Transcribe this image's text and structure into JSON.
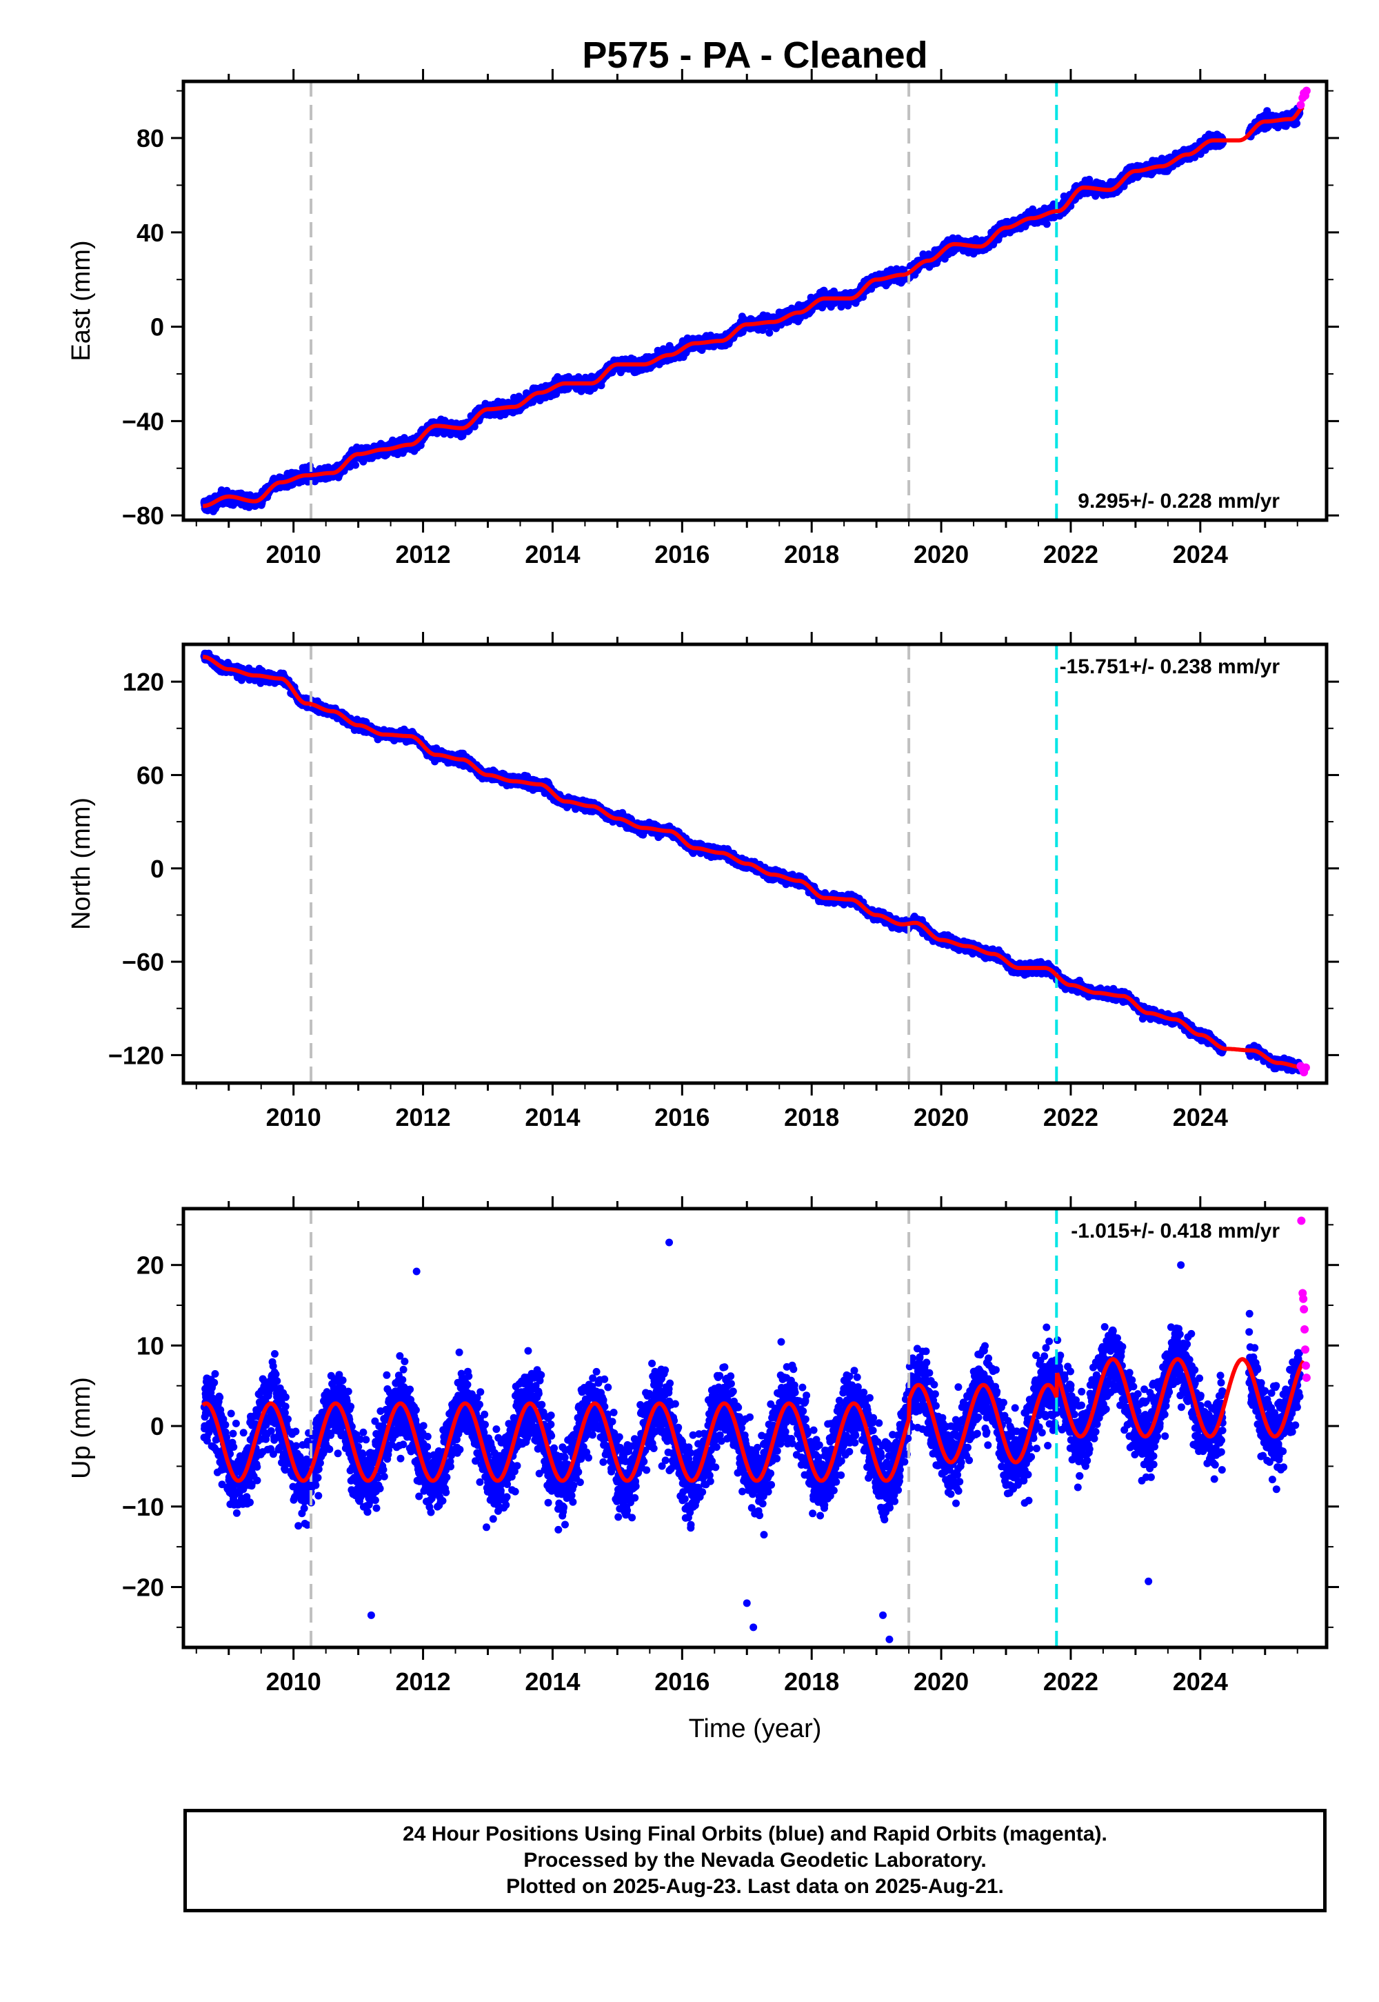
{
  "title": "P575  - PA - Cleaned",
  "colors": {
    "final": "#0000ff",
    "rapid": "#ff00ff",
    "model": "#ff0000",
    "equipment_change": "#c0c0c0",
    "earthquake": "#00e5e5"
  },
  "footer": {
    "line1": "24 Hour Positions Using Final Orbits (blue) and Rapid Orbits (magenta).",
    "line2": "Processed by the Nevada Geodetic Laboratory.",
    "line3": "Plotted on 2025-Aug-23. Last data on 2025-Aug-21."
  },
  "chart_data": [
    {
      "type": "scatter",
      "component": "east",
      "ylabel": "East (mm)",
      "xlabel": "",
      "xlim": [
        2008.3,
        2025.95
      ],
      "ylim": [
        -82,
        104
      ],
      "xticks": [
        2010,
        2012,
        2014,
        2016,
        2018,
        2020,
        2022,
        2024
      ],
      "yticks": [
        -80,
        -40,
        0,
        40,
        80
      ],
      "rate_label": "9.295+/- 0.228 mm/yr",
      "rate_position": "bottom-right",
      "vertical_lines": [
        {
          "x": 2010.27,
          "kind": "equipment_change"
        },
        {
          "x": 2019.5,
          "kind": "equipment_change"
        },
        {
          "x": 2021.78,
          "kind": "earthquake"
        }
      ],
      "model_curve": {
        "x": [
          2008.6,
          2009.0,
          2009.4,
          2009.8,
          2010.2,
          2010.6,
          2011.0,
          2011.4,
          2011.8,
          2012.2,
          2012.6,
          2013.0,
          2013.4,
          2013.8,
          2014.2,
          2014.6,
          2015.0,
          2015.4,
          2015.8,
          2016.2,
          2016.6,
          2017.0,
          2017.4,
          2017.8,
          2018.2,
          2018.6,
          2019.0,
          2019.4,
          2019.8,
          2020.2,
          2020.6,
          2021.0,
          2021.4,
          2021.8,
          2022.2,
          2022.6,
          2023.0,
          2023.4,
          2023.8,
          2024.2,
          2024.6,
          2025.0,
          2025.4,
          2025.6
        ],
        "y": [
          -76,
          -72,
          -74,
          -66,
          -63,
          -62,
          -54,
          -52,
          -50,
          -42,
          -43,
          -35,
          -34,
          -28,
          -24,
          -24,
          -16,
          -16,
          -12,
          -7,
          -6,
          1,
          2,
          6,
          12,
          12,
          20,
          22,
          28,
          35,
          34,
          42,
          46,
          49,
          59,
          58,
          66,
          68,
          73,
          79,
          79,
          87,
          88,
          93
        ]
      },
      "series": [
        {
          "name": "final",
          "trend": {
            "x0": 2008.6,
            "y0": -76,
            "x1": 2025.6,
            "y1": 93
          },
          "noise_mm": 2.2
        },
        {
          "name": "rapid",
          "x": [
            2025.55,
            2025.58,
            2025.6,
            2025.62,
            2025.64
          ],
          "y": [
            94,
            97,
            99,
            98,
            100
          ]
        }
      ]
    },
    {
      "type": "scatter",
      "component": "north",
      "ylabel": "North (mm)",
      "xlabel": "",
      "xlim": [
        2008.3,
        2025.95
      ],
      "ylim": [
        -138,
        144
      ],
      "xticks": [
        2010,
        2012,
        2014,
        2016,
        2018,
        2020,
        2022,
        2024
      ],
      "yticks": [
        -120,
        -60,
        0,
        60,
        120
      ],
      "rate_label": "-15.751+/- 0.238 mm/yr",
      "rate_position": "top-right",
      "vertical_lines": [
        {
          "x": 2010.27,
          "kind": "equipment_change"
        },
        {
          "x": 2019.5,
          "kind": "equipment_change"
        },
        {
          "x": 2021.78,
          "kind": "earthquake"
        }
      ],
      "model_curve": {
        "x": [
          2008.6,
          2009.0,
          2009.4,
          2009.8,
          2010.2,
          2010.6,
          2011.0,
          2011.4,
          2011.8,
          2012.2,
          2012.6,
          2013.0,
          2013.4,
          2013.8,
          2014.2,
          2014.6,
          2015.0,
          2015.4,
          2015.8,
          2016.2,
          2016.6,
          2017.0,
          2017.4,
          2017.8,
          2018.2,
          2018.6,
          2019.0,
          2019.4,
          2019.6,
          2020.0,
          2020.4,
          2020.8,
          2021.2,
          2021.6,
          2022.0,
          2022.4,
          2022.8,
          2023.2,
          2023.6,
          2024.0,
          2024.4,
          2024.8,
          2025.2,
          2025.6
        ],
        "y": [
          136,
          128,
          124,
          122,
          106,
          101,
          92,
          86,
          85,
          73,
          70,
          60,
          56,
          54,
          43,
          40,
          32,
          26,
          24,
          13,
          10,
          3,
          -4,
          -8,
          -19,
          -20,
          -30,
          -36,
          -35,
          -46,
          -50,
          -55,
          -64,
          -64,
          -75,
          -80,
          -82,
          -93,
          -97,
          -107,
          -116,
          -117,
          -125,
          -128
        ]
      },
      "series": [
        {
          "name": "final",
          "trend": {
            "x0": 2008.6,
            "y0": 136,
            "x1": 2025.6,
            "y1": -128
          },
          "noise_mm": 2.5
        },
        {
          "name": "rapid",
          "x": [
            2025.55,
            2025.58,
            2025.6,
            2025.63
          ],
          "y": [
            -127,
            -129,
            -131,
            -128
          ]
        }
      ]
    },
    {
      "type": "scatter",
      "component": "up",
      "ylabel": "Up (mm)",
      "xlabel": "Time (year)",
      "xlim": [
        2008.3,
        2025.95
      ],
      "ylim": [
        -27.5,
        27
      ],
      "xticks": [
        2010,
        2012,
        2014,
        2016,
        2018,
        2020,
        2022,
        2024
      ],
      "yticks": [
        -20,
        -10,
        0,
        10,
        20
      ],
      "rate_label": "-1.015+/- 0.418 mm/yr",
      "rate_position": "top-right",
      "vertical_lines": [
        {
          "x": 2010.27,
          "kind": "equipment_change"
        },
        {
          "x": 2019.5,
          "kind": "equipment_change"
        },
        {
          "x": 2021.78,
          "kind": "earthquake"
        }
      ],
      "model_curve": {
        "seasonal": {
          "offset_before_2019_5": -2.0,
          "offset_2019_5_to_2021_78": 0.3,
          "offset_after_2021_78": 3.5,
          "amplitude": 4.8,
          "phase_year": 0.65
        },
        "x_range": [
          2008.6,
          2025.6
        ]
      },
      "series": [
        {
          "name": "final",
          "noise_mm": 4.0,
          "outliers": {
            "x": [
              2011.2,
              2011.9,
              2015.8,
              2017.0,
              2017.1,
              2019.1,
              2019.2,
              2023.2,
              2023.7
            ],
            "y": [
              -23.5,
              19.2,
              22.8,
              -22,
              -25,
              -23.5,
              -26.5,
              -19.3,
              20
            ]
          }
        },
        {
          "name": "rapid",
          "x": [
            2025.56,
            2025.58,
            2025.59,
            2025.6,
            2025.61,
            2025.62,
            2025.63,
            2025.64
          ],
          "y": [
            25.5,
            16.5,
            15.8,
            14.5,
            12.0,
            9.5,
            7.5,
            6.0
          ]
        }
      ]
    }
  ]
}
